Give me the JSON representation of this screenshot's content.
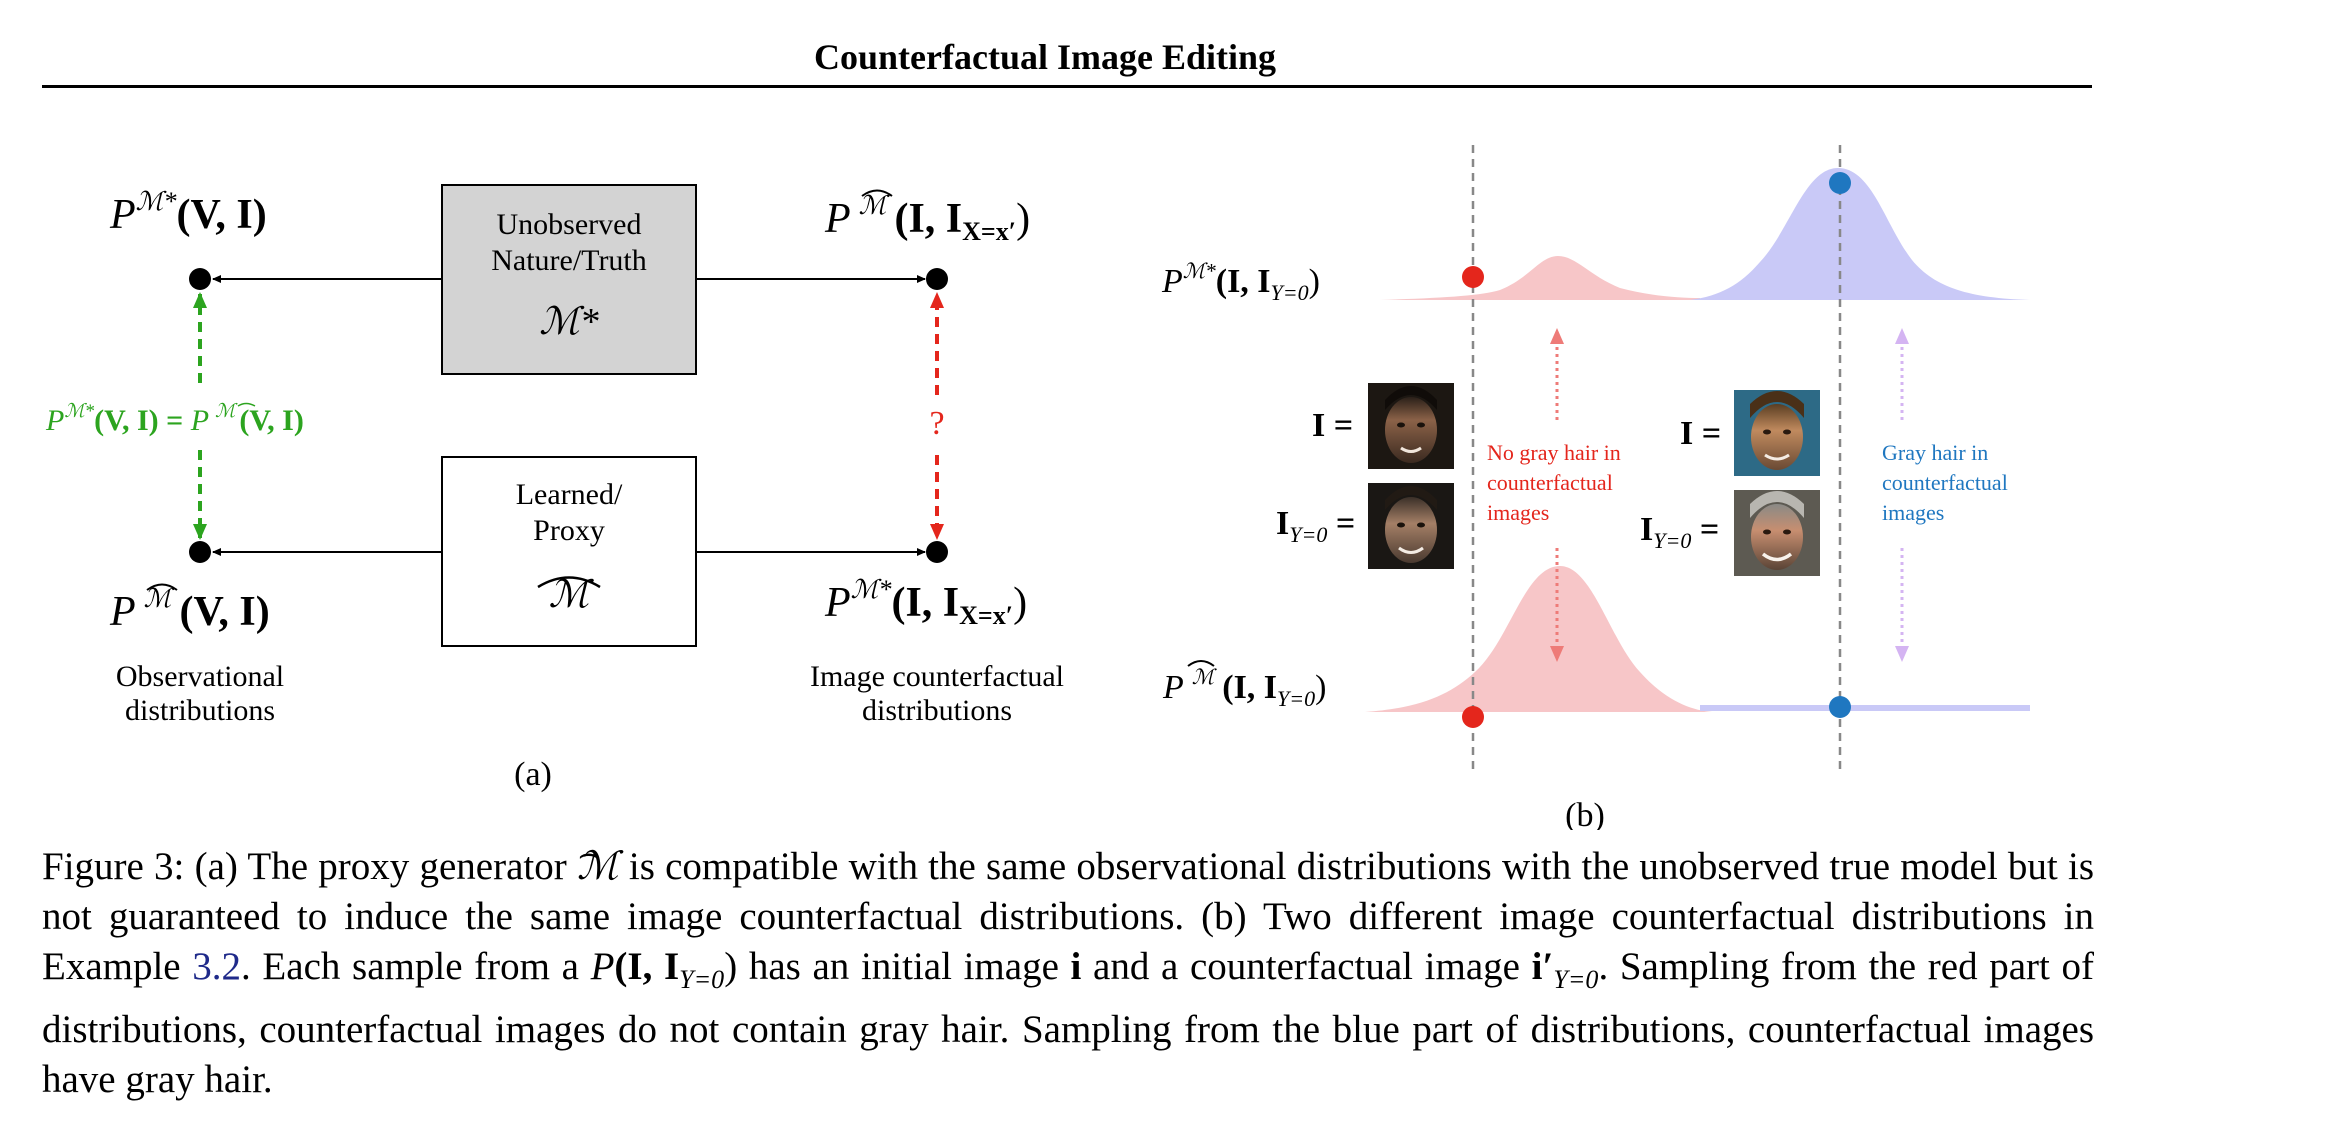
{
  "header": "Counterfactual Image Editing",
  "panel_a": {
    "top_left": {
      "base": "P",
      "sup": "ℳ*",
      "args": "(V, I)"
    },
    "top_right": {
      "base": "P",
      "sup": "ℳ",
      "args": "(I, I",
      "sub": "X=x′",
      "close": ")"
    },
    "bottom_left": {
      "base": "P",
      "sup": "ℳ",
      "args": "(V, I)"
    },
    "bottom_right": {
      "base": "P",
      "sup": "ℳ*",
      "args": "(I, I",
      "sub": "X=x′",
      "close": ")"
    },
    "true_box": {
      "line1": "Unobserved",
      "line2": "Nature/Truth",
      "symbol": "ℳ*"
    },
    "proxy_box": {
      "line1": "Learned/",
      "line2": "Proxy",
      "symbol": "ℳ"
    },
    "equality": {
      "left": "P",
      "left_sup": "ℳ*",
      "left_args": "(V, I) = ",
      "right": "P",
      "right_sup": "ℳ",
      "right_args": "(V, I)"
    },
    "question": "?",
    "obs_label_1": "Observational",
    "obs_label_2": "distributions",
    "cf_label_1": "Image counterfactual",
    "cf_label_2": "distributions",
    "tag": "(a)"
  },
  "panel_b": {
    "top_dist": {
      "base": "P",
      "sup": "ℳ*",
      "args": "(I, I",
      "sub": "Y=0",
      "close": ")"
    },
    "bottom_dist": {
      "base": "P",
      "sup": "ℳ",
      "args": "(I, I",
      "sub": "Y=0",
      "close": ")"
    },
    "img_label": "I =",
    "cf_label": "I",
    "cf_sub": "Y=0",
    "cf_eq": " =",
    "red_text_1": "No gray hair in",
    "red_text_2": "counterfactual",
    "red_text_3": "images",
    "blue_text_1": "Gray hair in",
    "blue_text_2": "counterfactual",
    "blue_text_3": "images",
    "tag": "(b)"
  },
  "colors": {
    "green": "#2ca41f",
    "red": "#e4261c",
    "blue": "#1f77c0",
    "pink_fill": "#f7c6c8",
    "lav_fill": "#c9c9f7",
    "lav_arrow": "#d4b4f2",
    "box_fill": "#d3d3d3"
  },
  "caption": {
    "p1": "Figure 3: (a) The proxy generator ",
    "symbol": "ℳ",
    "p2": " is compatible with the same observational distributions with the unobserved true model but is not guaranteed to induce the same image counterfactual distributions. (b) Two different image counterfactual distributions in Example ",
    "ref": "3.2",
    "p3": ". Each sample from a ",
    "math_P": "P",
    "math_args": "(I, I",
    "math_sub": "Y=0",
    "math_close": ")",
    "p4": " has an initial image ",
    "img_i": "i",
    "p5": " and a counterfactual image ",
    "img_cf": "i′",
    "img_cf_sub": "Y=0",
    "p6": ". Sampling from the red part of distributions, counterfactual images do not contain gray hair. Sampling from the blue part of distributions, counterfactual images have gray hair."
  }
}
